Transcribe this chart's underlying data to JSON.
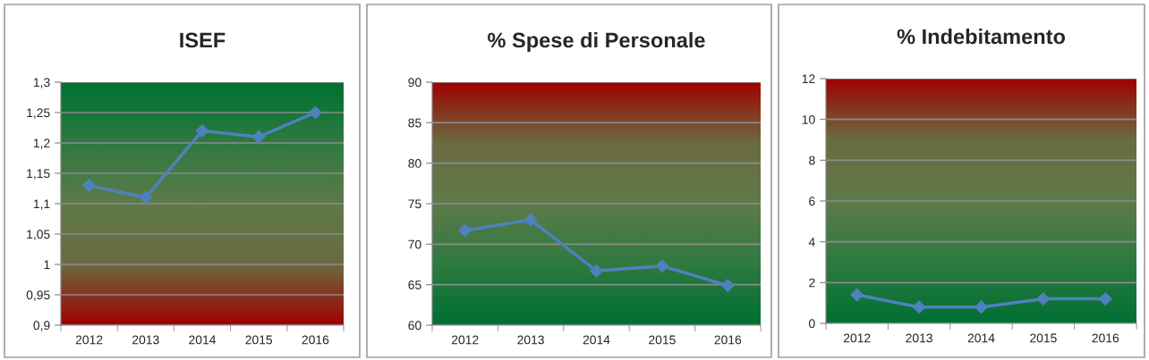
{
  "chart_data": [
    {
      "type": "line",
      "title": "ISEF",
      "categories": [
        "2012",
        "2013",
        "2014",
        "2015",
        "2016"
      ],
      "series": [
        {
          "color": "#4f81bd",
          "values": [
            1.13,
            1.11,
            1.22,
            1.21,
            1.25
          ]
        }
      ],
      "ylim": [
        0.9,
        1.3
      ],
      "yticks": [
        {
          "value": 0.9,
          "label": "0,9"
        },
        {
          "value": 0.95,
          "label": "0,95"
        },
        1,
        {
          "value": 1.05,
          "label": "1,05"
        },
        {
          "value": 1.1,
          "label": "1,1"
        },
        {
          "value": 1.15,
          "label": "1,15"
        },
        {
          "value": 1.2,
          "label": "1,2"
        },
        {
          "value": 1.25,
          "label": "1,25"
        },
        {
          "value": 1.3,
          "label": "1,3"
        }
      ],
      "grid": "y",
      "marker": "diamond",
      "line_style": "solid"
    },
    {
      "type": "line",
      "title": "% Spese di Personale",
      "categories": [
        "2012",
        "2013",
        "2014",
        "2015",
        "2016"
      ],
      "series": [
        {
          "color": "#4f81bd",
          "values": [
            71.7,
            73.0,
            66.7,
            67.3,
            64.9
          ]
        }
      ],
      "ylim": [
        60,
        90
      ],
      "yticks": [
        60,
        65,
        70,
        75,
        80,
        85,
        90
      ],
      "grid": "y",
      "marker": "diamond",
      "line_style": "solid"
    },
    {
      "type": "line",
      "title": "% Indebitamento",
      "categories": [
        "2012",
        "2013",
        "2014",
        "2015",
        "2016"
      ],
      "series": [
        {
          "color": "#4f81bd",
          "values": [
            1.4,
            0.8,
            0.8,
            1.2,
            1.2
          ]
        }
      ],
      "ylim": [
        0,
        12
      ],
      "yticks": [
        0,
        2,
        4,
        6,
        8,
        10,
        12
      ],
      "grid": "y",
      "marker": "diamond",
      "line_style": "solid"
    }
  ]
}
